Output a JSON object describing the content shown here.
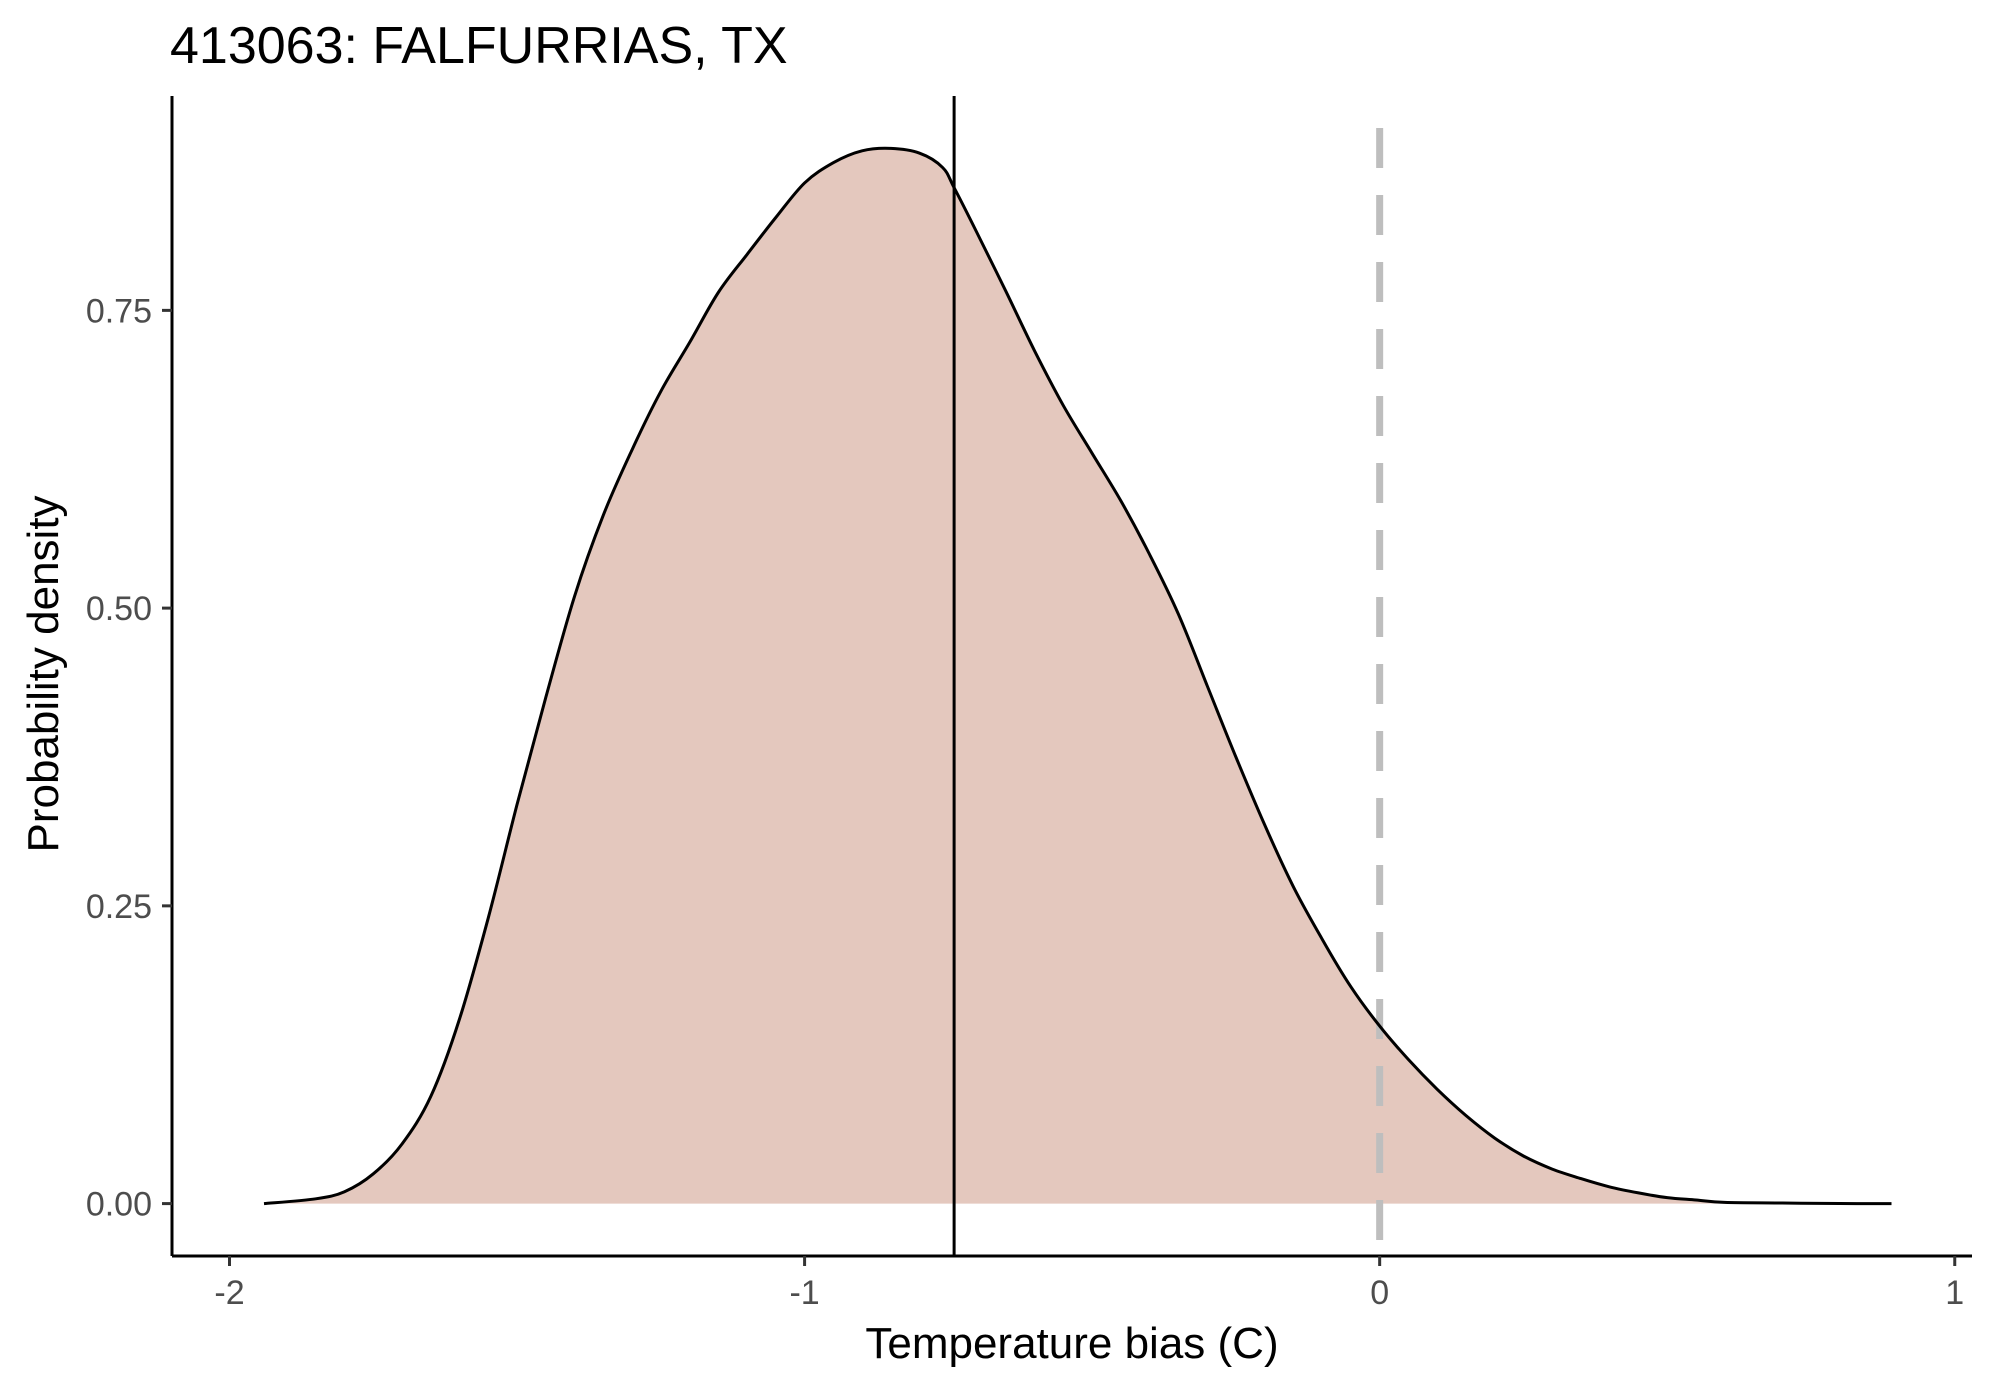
{
  "chart_data": {
    "type": "area",
    "title": "413063: FALFURRIAS, TX",
    "xlabel": "Temperature bias (C)",
    "ylabel": "Probability density",
    "xlim": [
      -2.1,
      1.03
    ],
    "ylim": [
      -0.044,
      0.93
    ],
    "x_ticks": [
      -2,
      -1,
      0,
      1
    ],
    "x_tick_labels": [
      "-2",
      "-1",
      "0",
      "1"
    ],
    "y_ticks": [
      0,
      0.25,
      0.5,
      0.75
    ],
    "y_tick_labels": [
      "0.00",
      "0.25",
      "0.50",
      "0.75"
    ],
    "grid": false,
    "legend": "none",
    "fill_color": "#e4c8be",
    "line_color": "#000000",
    "reference_lines": [
      {
        "x": -0.74,
        "style": "solid",
        "color": "#000000"
      },
      {
        "x": 0,
        "style": "dashed",
        "color": "#bebebe"
      }
    ],
    "series": [
      {
        "x": [
          -1.94,
          -1.85,
          -1.8,
          -1.75,
          -1.7,
          -1.65,
          -1.6,
          -1.55,
          -1.5,
          -1.45,
          -1.4,
          -1.35,
          -1.3,
          -1.25,
          -1.2,
          -1.15,
          -1.1,
          -1.05,
          -1.0,
          -0.95,
          -0.9,
          -0.85,
          -0.8,
          -0.76,
          -0.74,
          -0.7,
          -0.65,
          -0.6,
          -0.55,
          -0.5,
          -0.45,
          -0.4,
          -0.35,
          -0.3,
          -0.25,
          -0.2,
          -0.15,
          -0.1,
          -0.05,
          0.0,
          0.05,
          0.1,
          0.15,
          0.2,
          0.25,
          0.3,
          0.35,
          0.4,
          0.45,
          0.5,
          0.55,
          0.6,
          0.7,
          0.8,
          0.89
        ],
        "y": [
          0.0,
          0.004,
          0.01,
          0.025,
          0.05,
          0.09,
          0.155,
          0.24,
          0.335,
          0.425,
          0.51,
          0.578,
          0.633,
          0.682,
          0.723,
          0.765,
          0.797,
          0.828,
          0.857,
          0.874,
          0.884,
          0.886,
          0.882,
          0.87,
          0.853,
          0.815,
          0.766,
          0.716,
          0.67,
          0.63,
          0.59,
          0.545,
          0.495,
          0.435,
          0.375,
          0.318,
          0.266,
          0.222,
          0.182,
          0.149,
          0.121,
          0.096,
          0.074,
          0.055,
          0.04,
          0.029,
          0.021,
          0.014,
          0.009,
          0.005,
          0.003,
          0.001,
          0.0005,
          0.0001,
          0.0
        ]
      }
    ]
  }
}
